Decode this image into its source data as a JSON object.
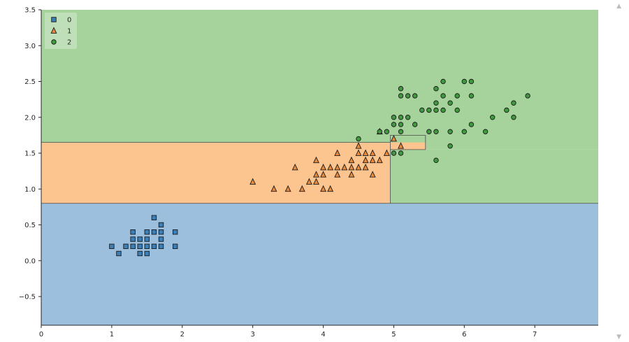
{
  "chart_data": {
    "type": "scatter",
    "title": "",
    "xlabel": "",
    "ylabel": "",
    "xlim": [
      0,
      7.9
    ],
    "ylim": [
      -0.9,
      3.5
    ],
    "xticks": [
      0,
      1,
      2,
      3,
      4,
      5,
      6,
      7
    ],
    "yticks": [
      -0.5,
      0.0,
      0.5,
      1.0,
      1.5,
      2.0,
      2.5,
      3.0,
      3.5
    ],
    "grid": false,
    "legend": {
      "position": "top-left",
      "entries": [
        "0",
        "1",
        "2"
      ]
    },
    "colors": {
      "0": {
        "region": "#9bbfdd",
        "marker": "#3d7fb5"
      },
      "1": {
        "region": "#fcc590",
        "marker": "#e9893b"
      },
      "2": {
        "region": "#a6d39c",
        "marker": "#3f9a3f"
      }
    },
    "decision_regions": [
      {
        "class": "0",
        "x": [
          0,
          7.9
        ],
        "y": [
          -0.9,
          0.8
        ]
      },
      {
        "class": "1",
        "x": [
          0,
          4.95
        ],
        "y": [
          0.8,
          1.65
        ]
      },
      {
        "class": "1",
        "x": [
          4.95,
          5.45
        ],
        "y": [
          1.55,
          1.75
        ]
      },
      {
        "class": "2",
        "x": [
          0,
          7.9
        ],
        "y": [
          1.65,
          3.5
        ]
      },
      {
        "class": "2",
        "x": [
          4.95,
          7.9
        ],
        "y": [
          0.8,
          1.55
        ]
      },
      {
        "class": "2",
        "x": [
          5.45,
          7.9
        ],
        "y": [
          1.55,
          1.75
        ]
      }
    ],
    "series": [
      {
        "name": "0",
        "marker": "square",
        "points": [
          [
            1.0,
            0.2
          ],
          [
            1.1,
            0.1
          ],
          [
            1.2,
            0.2
          ],
          [
            1.3,
            0.2
          ],
          [
            1.3,
            0.3
          ],
          [
            1.3,
            0.4
          ],
          [
            1.4,
            0.1
          ],
          [
            1.4,
            0.2
          ],
          [
            1.4,
            0.3
          ],
          [
            1.5,
            0.1
          ],
          [
            1.5,
            0.2
          ],
          [
            1.5,
            0.4
          ],
          [
            1.5,
            0.3
          ],
          [
            1.6,
            0.2
          ],
          [
            1.6,
            0.4
          ],
          [
            1.6,
            0.6
          ],
          [
            1.7,
            0.2
          ],
          [
            1.7,
            0.3
          ],
          [
            1.7,
            0.4
          ],
          [
            1.7,
            0.5
          ],
          [
            1.9,
            0.2
          ],
          [
            1.9,
            0.4
          ]
        ]
      },
      {
        "name": "1",
        "marker": "triangle",
        "points": [
          [
            3.0,
            1.1
          ],
          [
            3.3,
            1.0
          ],
          [
            3.5,
            1.0
          ],
          [
            3.6,
            1.3
          ],
          [
            3.7,
            1.0
          ],
          [
            3.8,
            1.1
          ],
          [
            3.9,
            1.1
          ],
          [
            3.9,
            1.2
          ],
          [
            3.9,
            1.4
          ],
          [
            4.0,
            1.0
          ],
          [
            4.0,
            1.2
          ],
          [
            4.0,
            1.3
          ],
          [
            4.1,
            1.0
          ],
          [
            4.1,
            1.3
          ],
          [
            4.2,
            1.2
          ],
          [
            4.2,
            1.3
          ],
          [
            4.2,
            1.5
          ],
          [
            4.3,
            1.3
          ],
          [
            4.4,
            1.2
          ],
          [
            4.4,
            1.3
          ],
          [
            4.4,
            1.4
          ],
          [
            4.5,
            1.3
          ],
          [
            4.5,
            1.5
          ],
          [
            4.5,
            1.6
          ],
          [
            4.6,
            1.3
          ],
          [
            4.6,
            1.4
          ],
          [
            4.6,
            1.5
          ],
          [
            4.7,
            1.2
          ],
          [
            4.7,
            1.4
          ],
          [
            4.7,
            1.5
          ],
          [
            4.8,
            1.4
          ],
          [
            4.8,
            1.8
          ],
          [
            4.9,
            1.5
          ],
          [
            5.0,
            1.7
          ],
          [
            5.1,
            1.6
          ]
        ]
      },
      {
        "name": "2",
        "marker": "circle",
        "points": [
          [
            4.5,
            1.7
          ],
          [
            4.8,
            1.8
          ],
          [
            4.9,
            1.8
          ],
          [
            5.0,
            1.5
          ],
          [
            5.0,
            1.9
          ],
          [
            5.0,
            2.0
          ],
          [
            5.1,
            1.5
          ],
          [
            5.1,
            1.8
          ],
          [
            5.1,
            1.9
          ],
          [
            5.1,
            2.0
          ],
          [
            5.1,
            2.3
          ],
          [
            5.1,
            2.4
          ],
          [
            5.2,
            2.0
          ],
          [
            5.2,
            2.3
          ],
          [
            5.3,
            1.9
          ],
          [
            5.3,
            2.3
          ],
          [
            5.4,
            2.1
          ],
          [
            5.5,
            1.8
          ],
          [
            5.5,
            2.1
          ],
          [
            5.6,
            1.4
          ],
          [
            5.6,
            1.8
          ],
          [
            5.6,
            2.1
          ],
          [
            5.6,
            2.2
          ],
          [
            5.6,
            2.4
          ],
          [
            5.7,
            2.1
          ],
          [
            5.7,
            2.3
          ],
          [
            5.7,
            2.5
          ],
          [
            5.8,
            1.6
          ],
          [
            5.8,
            1.8
          ],
          [
            5.8,
            2.2
          ],
          [
            5.9,
            2.1
          ],
          [
            5.9,
            2.3
          ],
          [
            6.0,
            1.8
          ],
          [
            6.0,
            2.5
          ],
          [
            6.1,
            1.9
          ],
          [
            6.1,
            2.3
          ],
          [
            6.1,
            2.5
          ],
          [
            6.3,
            1.8
          ],
          [
            6.4,
            2.0
          ],
          [
            6.6,
            2.1
          ],
          [
            6.7,
            2.0
          ],
          [
            6.7,
            2.2
          ],
          [
            6.9,
            2.3
          ]
        ]
      }
    ]
  }
}
